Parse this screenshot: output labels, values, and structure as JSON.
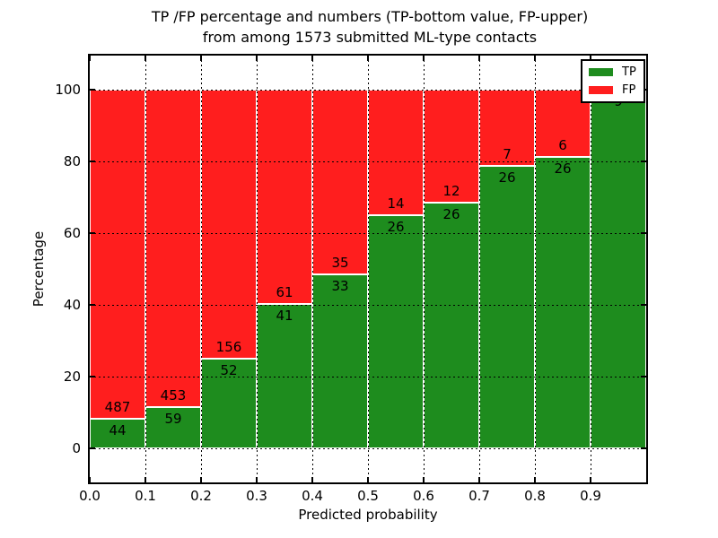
{
  "title": {
    "line1": "TP /FP percentage and numbers (TP-bottom value, FP-upper)",
    "line2": "from among 1573 submitted ML-type contacts"
  },
  "axes": {
    "xlabel": "Predicted probability",
    "ylabel": "Percentage",
    "x_tick_labels": [
      "0.0",
      "0.1",
      "0.2",
      "0.3",
      "0.4",
      "0.5",
      "0.6",
      "0.7",
      "0.8",
      "0.9"
    ],
    "y_tick_labels": [
      "0",
      "20",
      "40",
      "60",
      "80",
      "100"
    ]
  },
  "legend": {
    "items": [
      {
        "label": "TP",
        "color": "#1e8c1e"
      },
      {
        "label": "FP",
        "color": "#ff1e1e"
      }
    ]
  },
  "colors": {
    "tp_green": "#1e8c1e",
    "fp_red": "#ff1e1e",
    "grid": "#000000",
    "background": "#ffffff"
  },
  "chart_data": {
    "type": "bar",
    "stacked": true,
    "normalized_to_percent": true,
    "total_contacts": 1573,
    "title": "TP /FP percentage and numbers (TP-bottom value, FP-upper) from among 1573 submitted ML-type contacts",
    "xlabel": "Predicted probability",
    "ylabel": "Percentage",
    "categories": [
      "0.0-0.1",
      "0.1-0.2",
      "0.2-0.3",
      "0.3-0.4",
      "0.4-0.5",
      "0.5-0.6",
      "0.6-0.7",
      "0.7-0.8",
      "0.8-0.9",
      "0.9-1.0"
    ],
    "bin_left_edges": [
      0.0,
      0.1,
      0.2,
      0.3,
      0.4,
      0.5,
      0.6,
      0.7,
      0.8,
      0.9
    ],
    "bin_width": 0.1,
    "series": [
      {
        "name": "TP",
        "color": "#1e8c1e",
        "position": "bottom",
        "values": [
          44,
          59,
          52,
          41,
          33,
          26,
          26,
          26,
          26,
          9
        ]
      },
      {
        "name": "FP",
        "color": "#ff1e1e",
        "position": "upper",
        "values": [
          487,
          453,
          156,
          61,
          35,
          14,
          12,
          7,
          6,
          0
        ]
      }
    ],
    "tp_percent_of_bin": [
      8.3,
      11.5,
      25.0,
      40.2,
      48.5,
      65.0,
      68.4,
      78.8,
      81.2,
      100.0
    ],
    "x_ticks": [
      0.0,
      0.1,
      0.2,
      0.3,
      0.4,
      0.5,
      0.6,
      0.7,
      0.8,
      0.9
    ],
    "y_ticks": [
      0,
      20,
      40,
      60,
      80,
      100
    ],
    "xlim": [
      0.0,
      1.0
    ],
    "ylim": [
      -9.5,
      109.5
    ],
    "grid": true,
    "grid_style": "dotted",
    "legend_position": "upper right",
    "bar_edge_color": "#ffffff"
  }
}
